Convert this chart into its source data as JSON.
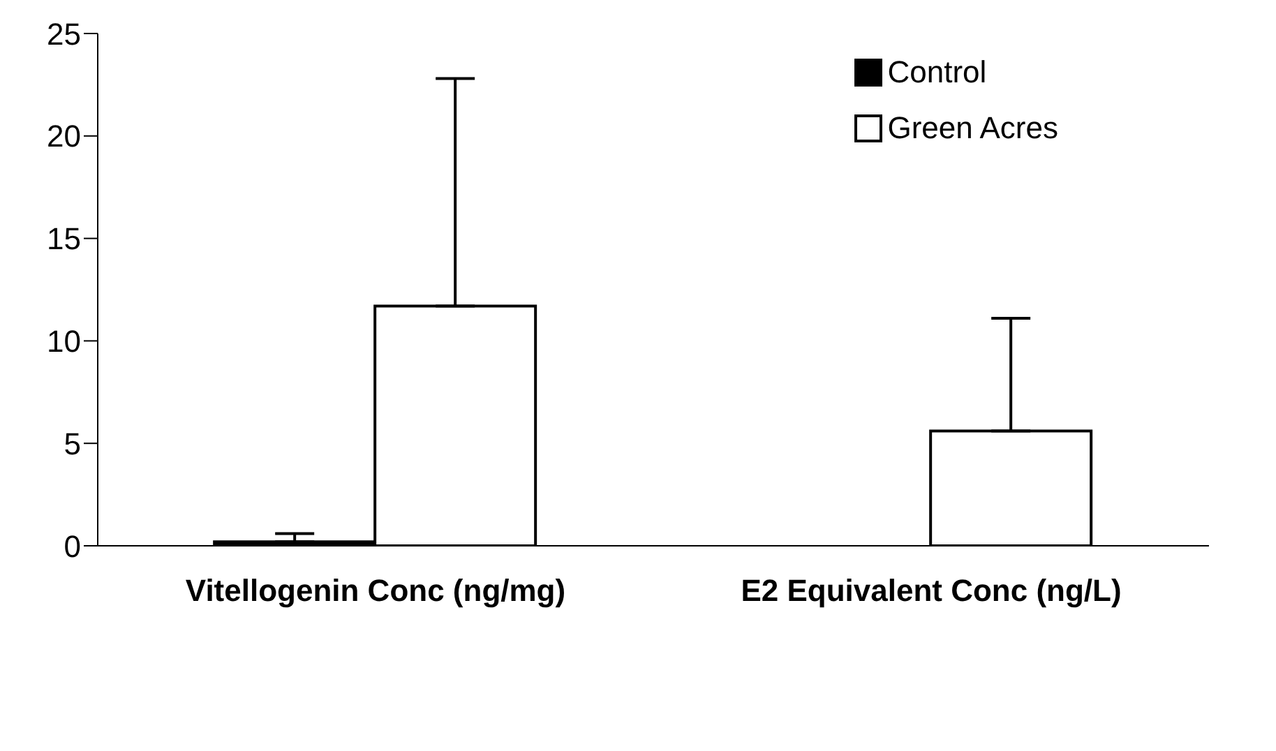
{
  "chart_data": {
    "type": "bar",
    "categories": [
      "Vitellogenin Conc (ng/mg)",
      "E2 Equivalent Conc (ng/L)"
    ],
    "series": [
      {
        "name": "Control",
        "color": "#000000",
        "values": [
          0.2,
          0
        ],
        "errors": [
          [
            0.2,
            0.6
          ],
          null
        ]
      },
      {
        "name": "Green Acres",
        "color": "#ffffff",
        "values": [
          11.7,
          5.6
        ],
        "errors": [
          [
            11.7,
            22.8
          ],
          [
            5.6,
            11.1
          ]
        ]
      }
    ],
    "ylim": [
      0,
      25
    ],
    "yticks": [
      0,
      5,
      10,
      15,
      20,
      25
    ],
    "grid": false,
    "legend": "top right"
  }
}
